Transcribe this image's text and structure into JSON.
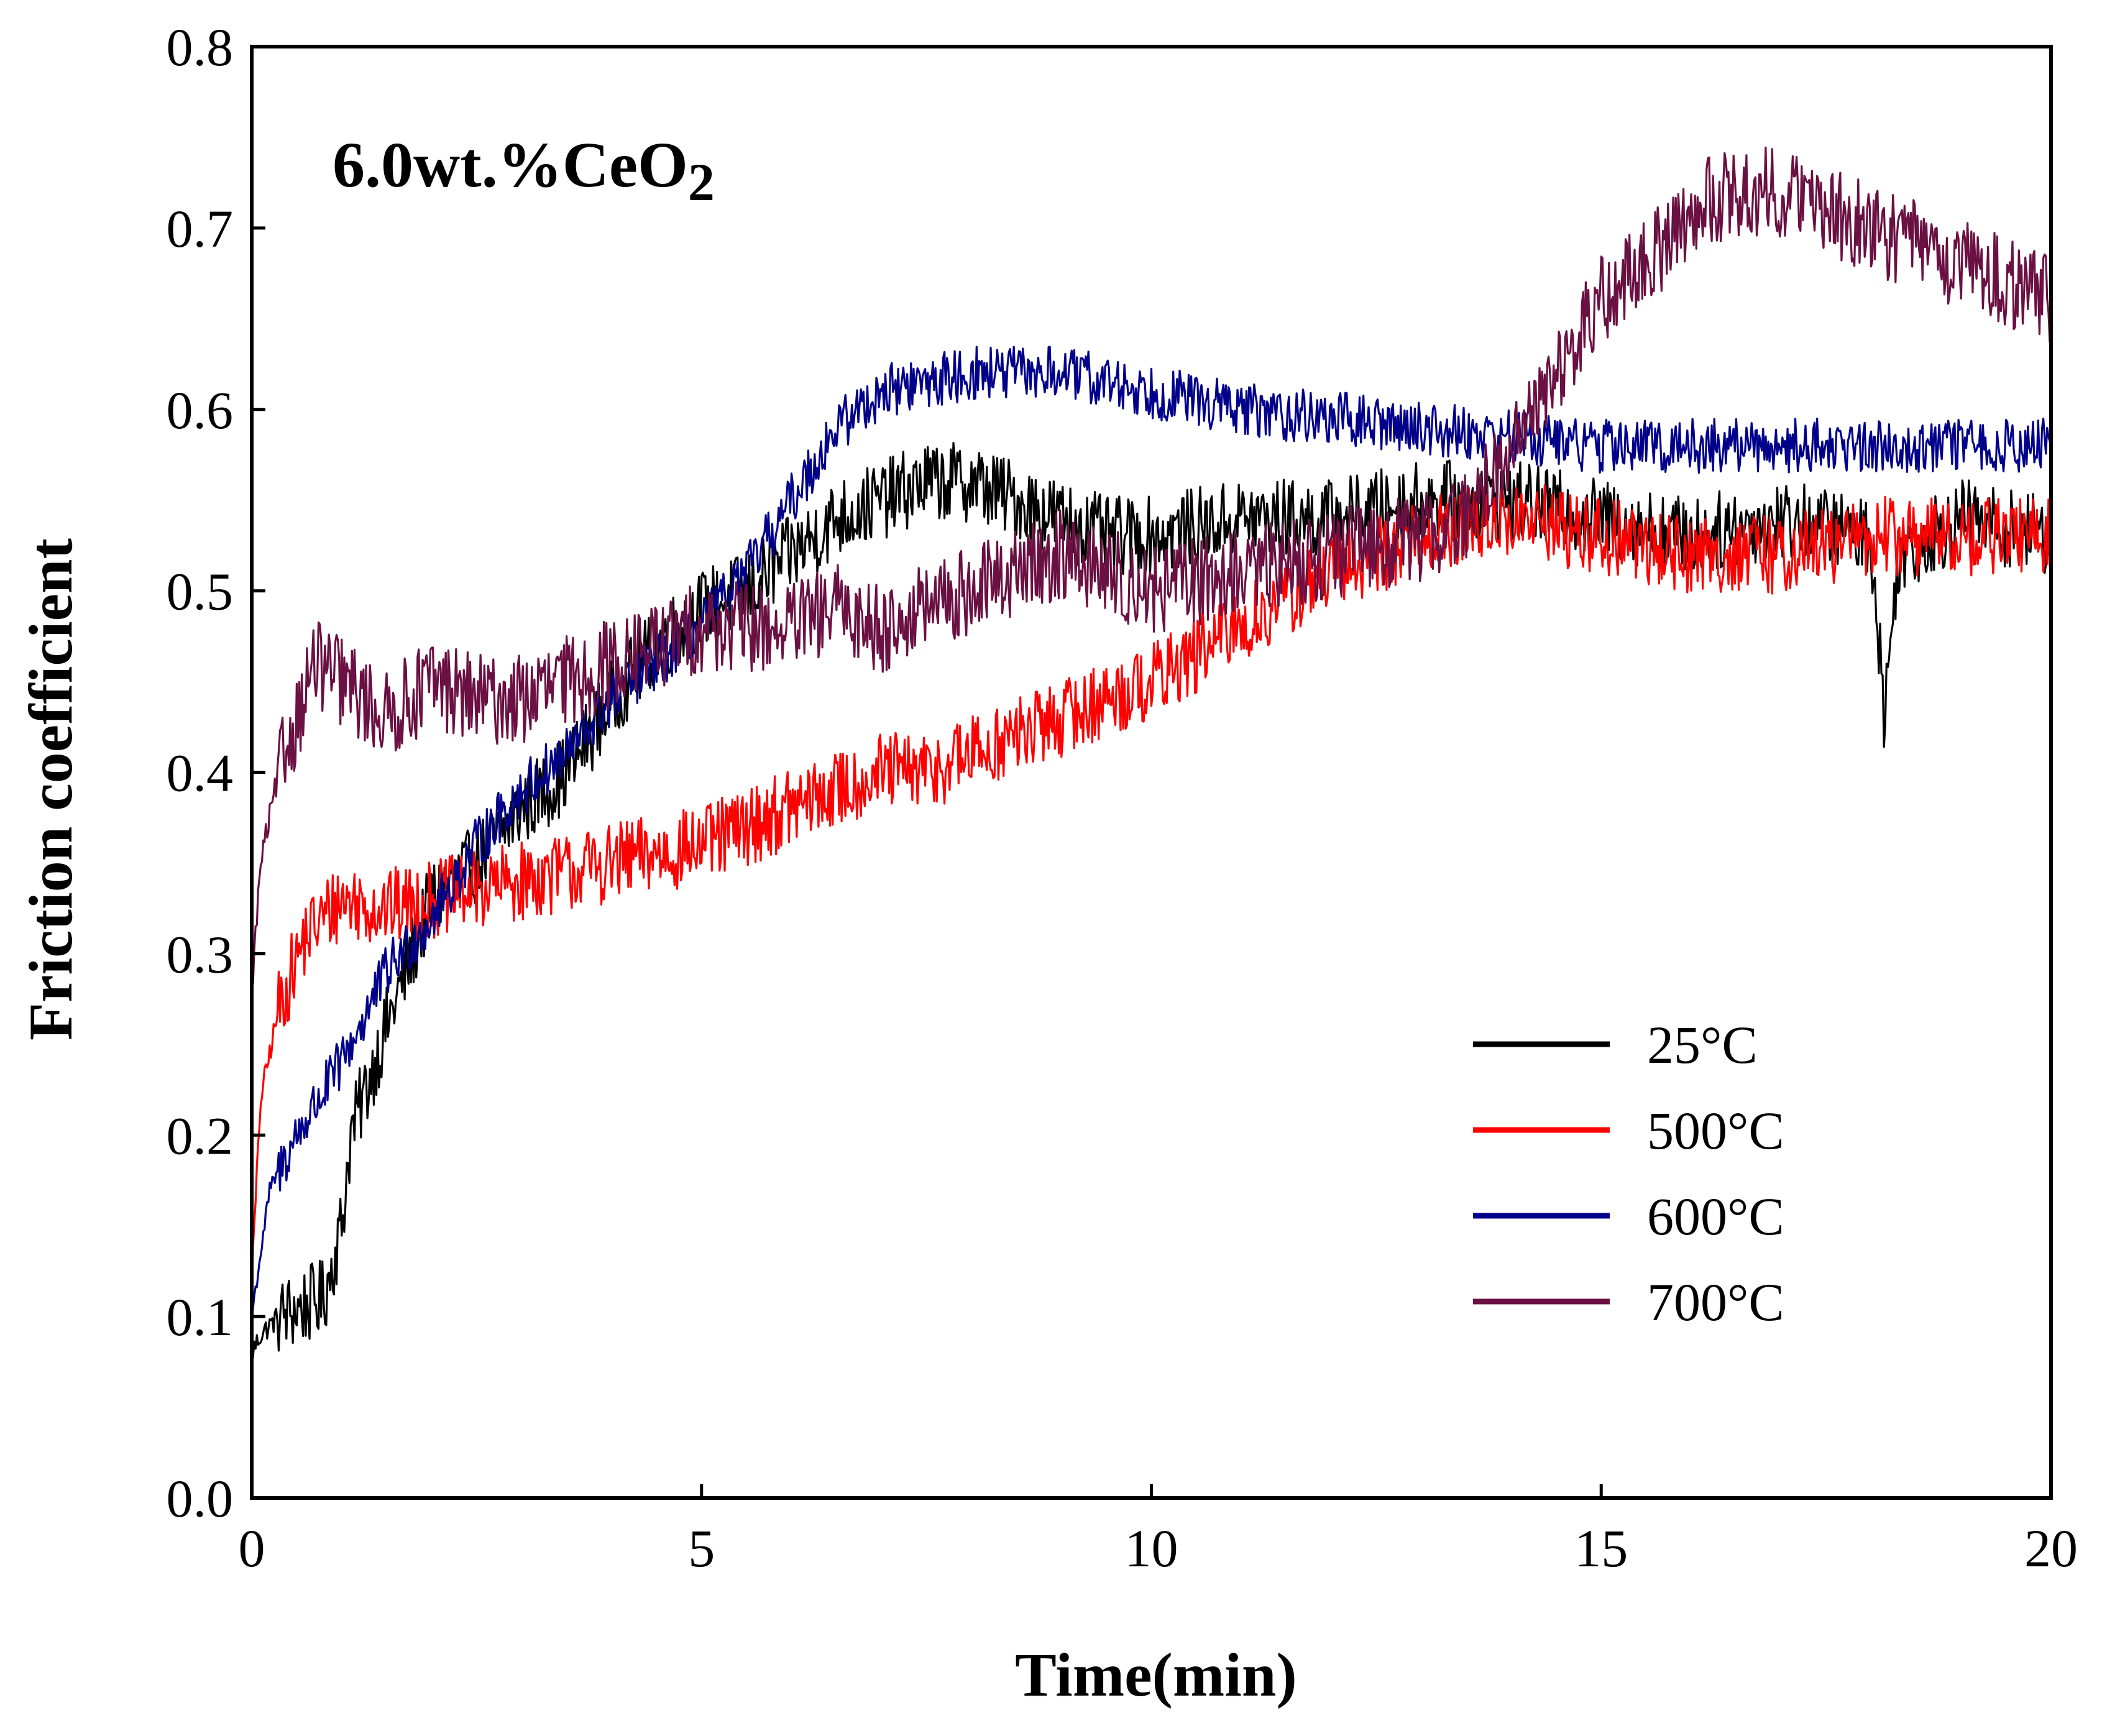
{
  "chart_data": {
    "type": "line",
    "title": "",
    "annotation": "6.0wt.%CeO",
    "annotation_sub": "2",
    "xlabel": "Time(min)",
    "ylabel": "Friction coefficient",
    "xlim": [
      0,
      20
    ],
    "ylim": [
      0,
      0.8
    ],
    "xticks": [
      0,
      5,
      10,
      15,
      20
    ],
    "xtick_labels": [
      "0",
      "5",
      "10",
      "15",
      "20"
    ],
    "yticks": [
      0,
      0.1,
      0.2,
      0.3,
      0.4,
      0.5,
      0.6,
      0.7,
      0.8
    ],
    "ytick_labels": [
      "0.0",
      "0.1",
      "0.2",
      "0.3",
      "0.4",
      "0.5",
      "0.6",
      "0.7",
      "0.8"
    ],
    "grid": false,
    "legend_position": "bottom-right",
    "series": [
      {
        "name": "25°C",
        "color": "#000000",
        "noise": 0.022,
        "x": [
          0,
          0.1,
          0.3,
          0.8,
          1.0,
          1.1,
          1.5,
          2.0,
          2.5,
          3.0,
          3.5,
          4.0,
          4.5,
          5.0,
          5.5,
          6.0,
          6.5,
          7.0,
          7.5,
          8.0,
          8.5,
          9.0,
          9.5,
          10.0,
          11.0,
          12.0,
          13.0,
          14.0,
          15.0,
          16.0,
          17.0,
          18.0,
          18.15,
          18.3,
          19.0,
          20.0
        ],
        "y": [
          0.08,
          0.09,
          0.1,
          0.11,
          0.15,
          0.2,
          0.26,
          0.33,
          0.35,
          0.38,
          0.4,
          0.44,
          0.47,
          0.49,
          0.5,
          0.52,
          0.54,
          0.55,
          0.56,
          0.56,
          0.55,
          0.54,
          0.53,
          0.53,
          0.54,
          0.54,
          0.55,
          0.55,
          0.54,
          0.53,
          0.54,
          0.53,
          0.43,
          0.52,
          0.54,
          0.53
        ]
      },
      {
        "name": "500°C",
        "color": "#ff0000",
        "noise": 0.022,
        "x": [
          0,
          0.1,
          0.3,
          0.6,
          1.0,
          1.5,
          2.0,
          3.0,
          4.0,
          5.0,
          6.0,
          7.0,
          7.5,
          8.0,
          9.0,
          10.0,
          11.0,
          12.0,
          13.0,
          14.0,
          15.0,
          16.0,
          17.0,
          18.0,
          19.0,
          20.0
        ],
        "y": [
          0.12,
          0.22,
          0.27,
          0.31,
          0.33,
          0.325,
          0.33,
          0.34,
          0.35,
          0.36,
          0.38,
          0.4,
          0.4,
          0.41,
          0.43,
          0.45,
          0.48,
          0.51,
          0.53,
          0.54,
          0.53,
          0.52,
          0.52,
          0.53,
          0.53,
          0.53
        ]
      },
      {
        "name": "600°C",
        "color": "#00008b",
        "noise": 0.015,
        "x": [
          0,
          0.2,
          0.5,
          1.0,
          1.5,
          2.0,
          2.5,
          3.0,
          3.5,
          4.0,
          4.5,
          5.0,
          5.5,
          6.0,
          6.5,
          7.0,
          8.0,
          9.0,
          10.0,
          11.0,
          12.0,
          13.0,
          14.0,
          15.0,
          16.0,
          17.0,
          18.0,
          19.0,
          20.0
        ],
        "y": [
          0.1,
          0.17,
          0.2,
          0.24,
          0.29,
          0.32,
          0.36,
          0.39,
          0.41,
          0.44,
          0.46,
          0.48,
          0.51,
          0.55,
          0.59,
          0.61,
          0.62,
          0.62,
          0.61,
          0.6,
          0.595,
          0.59,
          0.585,
          0.58,
          0.58,
          0.58,
          0.58,
          0.58,
          0.58
        ]
      },
      {
        "name": "700°C",
        "color": "#6b1042",
        "noise": 0.025,
        "x": [
          0,
          0.1,
          0.3,
          0.7,
          1.0,
          1.5,
          2.0,
          2.5,
          3.0,
          3.5,
          4.0,
          4.5,
          5.0,
          5.5,
          6.0,
          6.5,
          7.0,
          8.0,
          9.0,
          10.0,
          11.0,
          12.0,
          13.0,
          13.5,
          14.0,
          14.5,
          15.0,
          15.5,
          16.0,
          16.5,
          17.0,
          17.5,
          18.0,
          19.0,
          20.0
        ],
        "y": [
          0.28,
          0.35,
          0.4,
          0.46,
          0.45,
          0.43,
          0.45,
          0.44,
          0.44,
          0.45,
          0.46,
          0.47,
          0.48,
          0.48,
          0.48,
          0.49,
          0.48,
          0.5,
          0.52,
          0.5,
          0.51,
          0.52,
          0.53,
          0.54,
          0.58,
          0.62,
          0.66,
          0.68,
          0.71,
          0.72,
          0.72,
          0.71,
          0.7,
          0.68,
          0.66
        ]
      }
    ]
  }
}
